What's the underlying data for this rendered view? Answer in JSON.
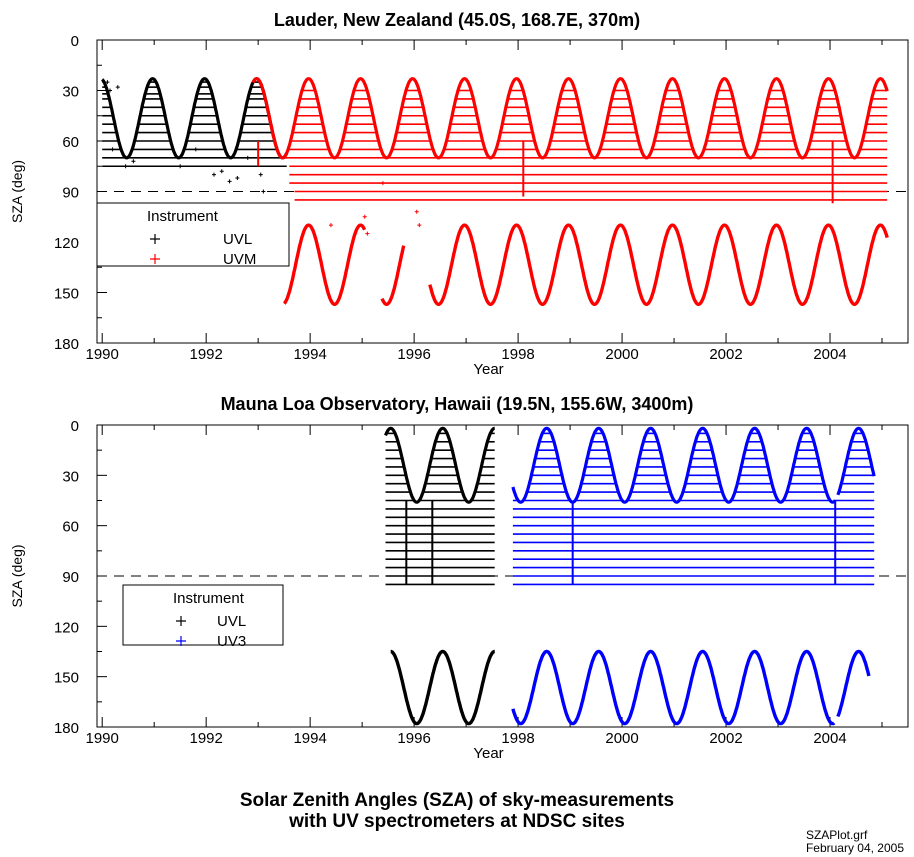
{
  "figure": {
    "caption_line1": "Solar Zenith Angles (SZA) of sky-measurements",
    "caption_line2": "with UV spectrometers at NDSC sites",
    "file_name": "SZAPlot.grf",
    "date": "February 04, 2005"
  },
  "chart_data": [
    {
      "type": "scatter",
      "title": "Lauder, New Zealand (45.0S, 168.7E, 370m)",
      "xlabel": "Year",
      "ylabel": "SZA (deg)",
      "xlim": [
        1989.9,
        2005.5
      ],
      "ylim": [
        180,
        0
      ],
      "y_inverted": true,
      "x_ticks": [
        1990,
        1992,
        1994,
        1996,
        1998,
        2000,
        2002,
        2004
      ],
      "y_ticks": [
        0,
        30,
        60,
        90,
        120,
        150,
        180
      ],
      "reference_line": {
        "y": 90,
        "style": "dashed"
      },
      "legend": {
        "title": "Instrument",
        "position": "left-middle"
      },
      "series": [
        {
          "name": "UVL",
          "color": "#000000",
          "marker": "+",
          "noon_sza_curve": {
            "from": 1990.0,
            "to": 1993.55,
            "min": 23,
            "max": 70,
            "min_at": 1990.97
          },
          "horizontal_levels": [
            25,
            28,
            32,
            35,
            40,
            45,
            50,
            55,
            60,
            65,
            70,
            75
          ],
          "scatter_points": [
            [
              1990.1,
              25
            ],
            [
              1990.15,
              30
            ],
            [
              1990.3,
              28
            ],
            [
              1990.2,
              65
            ],
            [
              1990.45,
              75
            ],
            [
              1990.6,
              72
            ],
            [
              1991.5,
              75
            ],
            [
              1991.8,
              65
            ],
            [
              1992.15,
              80
            ],
            [
              1992.3,
              78
            ],
            [
              1992.45,
              84
            ],
            [
              1992.6,
              82
            ],
            [
              1992.8,
              70
            ],
            [
              1993.05,
              80
            ],
            [
              1993.1,
              90
            ]
          ]
        },
        {
          "name": "UVM",
          "color": "#ff0000",
          "marker": "+",
          "noon_sza_curve": {
            "from": 1992.9,
            "to": 2005.1,
            "min": 23,
            "max": 70,
            "min_at": 1990.97
          },
          "midnight_sza_curve": {
            "from": 1993.5,
            "to": 2005.1,
            "min": 110,
            "max": 157,
            "min_at": 1990.97,
            "gaps": [
              [
                1995.05,
                1995.38
              ],
              [
                1995.8,
                1996.3
              ]
            ]
          },
          "horizontal_levels": [
            30,
            35,
            40,
            45,
            50,
            55,
            60,
            65,
            70,
            75,
            80,
            85,
            90,
            95
          ],
          "level_start_by_y": [
            [
              30,
              1993.5
            ],
            [
              75,
              1993.6
            ],
            [
              85,
              1993.6
            ],
            [
              90,
              1993.7
            ],
            [
              95,
              1993.7
            ]
          ],
          "spikes": [
            [
              1993.0,
              60,
              75
            ],
            [
              1998.1,
              60,
              93
            ],
            [
              2004.05,
              60,
              97
            ]
          ],
          "scatter_points": [
            [
              1994.4,
              110
            ],
            [
              1995.05,
              105
            ],
            [
              1995.1,
              115
            ],
            [
              1996.05,
              102
            ],
            [
              1996.1,
              110
            ],
            [
              1995.4,
              85
            ]
          ]
        }
      ]
    },
    {
      "type": "scatter",
      "title": "Mauna Loa Observatory, Hawaii (19.5N, 155.6W, 3400m)",
      "xlabel": "Year",
      "ylabel": "SZA (deg)",
      "xlim": [
        1989.9,
        2005.5
      ],
      "ylim": [
        180,
        0
      ],
      "y_inverted": true,
      "x_ticks": [
        1990,
        1992,
        1994,
        1996,
        1998,
        2000,
        2002,
        2004
      ],
      "y_ticks": [
        0,
        30,
        60,
        90,
        120,
        150,
        180
      ],
      "reference_line": {
        "y": 90,
        "style": "dashed"
      },
      "legend": {
        "title": "Instrument",
        "position": "left-middle"
      },
      "series": [
        {
          "name": "UVL",
          "color": "#000000",
          "marker": "+",
          "noon_sza_curve": {
            "from": 1995.45,
            "to": 1997.55,
            "min": 2,
            "max": 46,
            "min_at": 1995.55
          },
          "midnight_sza_curve": {
            "from": 1995.55,
            "to": 1997.55,
            "min": 135,
            "max": 178,
            "min_at": 1995.55
          },
          "horizontal_levels": [
            5,
            10,
            15,
            20,
            25,
            30,
            35,
            40,
            45,
            50,
            55,
            60,
            65,
            70,
            75,
            80,
            85,
            90,
            95
          ],
          "level_span": [
            1995.45,
            1997.55
          ],
          "spikes": [
            [
              1995.85,
              45,
              95
            ],
            [
              1996.35,
              45,
              95
            ]
          ]
        },
        {
          "name": "UV3",
          "color": "#0000ff",
          "marker": "+",
          "noon_sza_curve": {
            "from": 1997.9,
            "to": 2004.85,
            "min": 2,
            "max": 46,
            "min_at": 1995.55,
            "gaps": [
              [
                2004.1,
                2004.15
              ]
            ]
          },
          "midnight_sza_curve": {
            "from": 1997.9,
            "to": 2004.75,
            "min": 135,
            "max": 178,
            "min_at": 1995.55,
            "gaps": [
              [
                2004.08,
                2004.15
              ]
            ]
          },
          "horizontal_levels": [
            5,
            10,
            15,
            20,
            25,
            30,
            35,
            40,
            45,
            50,
            55,
            60,
            65,
            70,
            75,
            80,
            85,
            90,
            95
          ],
          "level_span": [
            1997.9,
            2004.85
          ],
          "spikes": [
            [
              1999.05,
              45,
              95
            ],
            [
              2004.1,
              45,
              95
            ]
          ]
        }
      ]
    }
  ]
}
